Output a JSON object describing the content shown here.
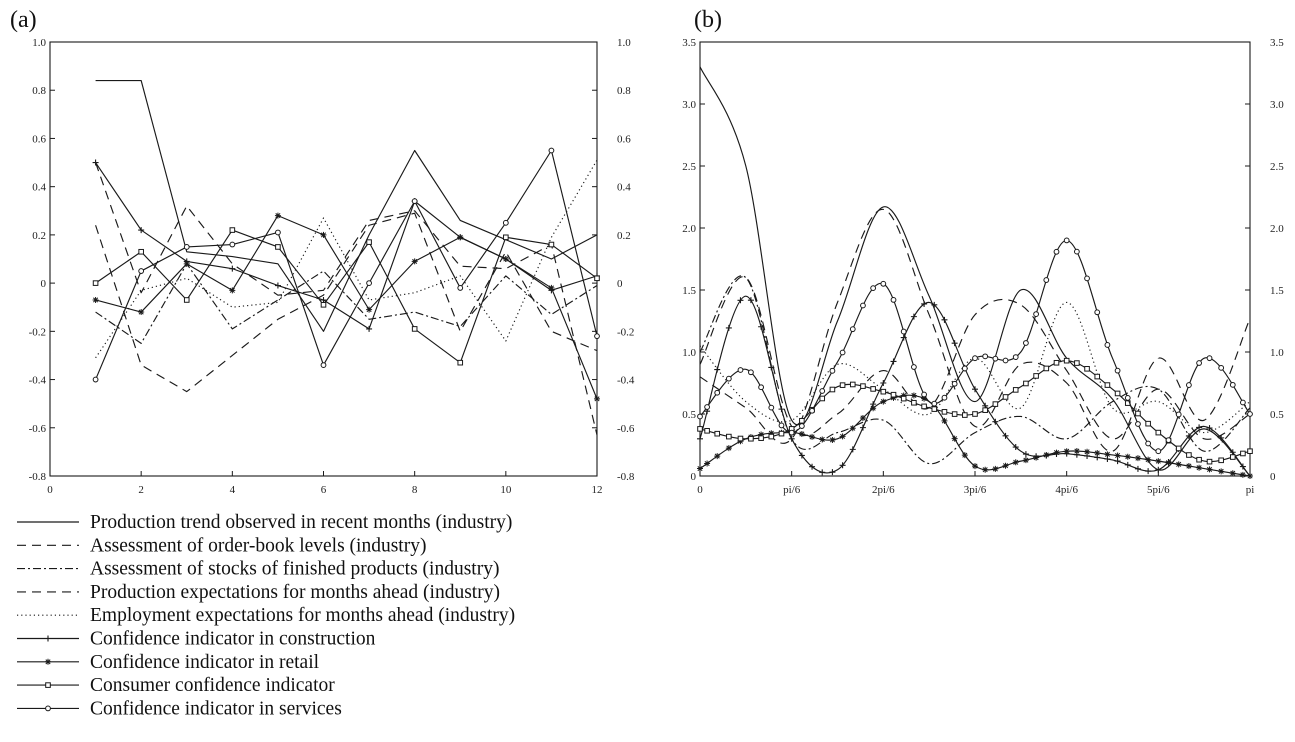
{
  "panel_labels": {
    "a": "(a)",
    "b": "(b)"
  },
  "line_styles": {
    "trend": "solid",
    "order": "long-dash",
    "stocks": "dash-dot",
    "prodexp": "long-dash",
    "employ": "dotted",
    "construction": "solid-plus-marker",
    "retail": "solid-star-marker",
    "consumer": "solid-square-marker",
    "services": "solid-circle-marker"
  },
  "colors": {
    "ink": "#1a1a1a",
    "background": "#ffffff"
  },
  "chart_data": [
    {
      "id": "a",
      "type": "line",
      "x": [
        1,
        2,
        3,
        4,
        5,
        6,
        7,
        8,
        9,
        10,
        11,
        12
      ],
      "xlim": [
        0,
        12
      ],
      "ylim": [
        -0.8,
        1.0
      ],
      "x_ticks": [
        0,
        2,
        4,
        6,
        8,
        10,
        12
      ],
      "x_tick_labels": [
        "0",
        "2",
        "4",
        "6",
        "8",
        "10",
        "12"
      ],
      "y_ticks": [
        -0.8,
        -0.6,
        -0.4,
        -0.2,
        0,
        0.2,
        0.4,
        0.6,
        0.8,
        1.0
      ],
      "y_tick_labels": [
        "-0.8",
        "-0.6",
        "-0.4",
        "-0.2",
        "0",
        "0.2",
        "0.4",
        "0.6",
        "0.8",
        "1.0"
      ],
      "right_axis_labels": true,
      "grid": false,
      "series": [
        {
          "key": "trend",
          "values": [
            0.84,
            0.84,
            0.13,
            0.11,
            0.08,
            -0.2,
            0.2,
            0.55,
            0.26,
            0.18,
            0.1,
            0.2
          ]
        },
        {
          "key": "order",
          "values": [
            0.24,
            -0.34,
            -0.45,
            -0.3,
            -0.15,
            -0.05,
            0.24,
            0.29,
            -0.2,
            0.13,
            -0.2,
            -0.28
          ]
        },
        {
          "key": "stocks",
          "values": [
            -0.12,
            -0.25,
            0.08,
            -0.19,
            -0.07,
            0.05,
            -0.15,
            -0.12,
            -0.18,
            0.03,
            -0.13,
            -0.01
          ]
        },
        {
          "key": "prodexp",
          "values": [
            0.5,
            -0.04,
            0.32,
            0.08,
            -0.05,
            -0.03,
            0.26,
            0.3,
            0.07,
            0.06,
            0.16,
            -0.63
          ]
        },
        {
          "key": "employ",
          "values": [
            -0.31,
            -0.03,
            0.02,
            -0.1,
            -0.08,
            0.27,
            -0.07,
            -0.04,
            0.03,
            -0.24,
            0.19,
            0.51
          ]
        },
        {
          "key": "construction",
          "values": [
            0.5,
            0.22,
            0.09,
            0.06,
            -0.01,
            -0.07,
            -0.19,
            0.34,
            0.19,
            0.1,
            -0.03,
            0.03
          ]
        },
        {
          "key": "retail",
          "values": [
            -0.07,
            -0.12,
            0.08,
            -0.03,
            0.28,
            0.2,
            -0.11,
            0.09,
            0.19,
            0.1,
            -0.02,
            -0.48
          ]
        },
        {
          "key": "consumer",
          "values": [
            0.0,
            0.13,
            -0.07,
            0.22,
            0.15,
            -0.09,
            0.17,
            -0.19,
            -0.33,
            0.19,
            0.16,
            0.02
          ]
        },
        {
          "key": "services",
          "values": [
            -0.4,
            0.05,
            0.15,
            0.16,
            0.21,
            -0.34,
            0.0,
            0.34,
            -0.02,
            0.25,
            0.55,
            -0.22
          ]
        }
      ]
    },
    {
      "id": "b",
      "type": "line",
      "x": [
        0,
        0.0833,
        0.1667,
        0.25,
        0.3333,
        0.4167,
        0.5,
        0.5833,
        0.6667,
        0.75,
        0.8333,
        0.9167,
        1.0
      ],
      "x_unit": "fraction of pi",
      "xlim": [
        0,
        1
      ],
      "ylim": [
        0,
        3.5
      ],
      "x_ticks": [
        0,
        0.16667,
        0.33333,
        0.5,
        0.66667,
        0.83333,
        1.0
      ],
      "x_tick_labels": [
        "0",
        "pi/6",
        "2pi/6",
        "3pi/6",
        "4pi/6",
        "5pi/6",
        "pi"
      ],
      "y_ticks": [
        0,
        0.5,
        1.0,
        1.5,
        2.0,
        2.5,
        3.0,
        3.5
      ],
      "y_tick_labels": [
        "0",
        "0.5",
        "1.0",
        "1.5",
        "2.0",
        "2.5",
        "3.0",
        "3.5"
      ],
      "right_axis_labels": true,
      "grid": false,
      "series": [
        {
          "key": "trend",
          "values": [
            3.3,
            2.5,
            0.45,
            1.25,
            2.17,
            1.45,
            0.6,
            1.5,
            0.95,
            0.62,
            0.05,
            0.38,
            0.0
          ]
        },
        {
          "key": "order",
          "values": [
            0.8,
            0.55,
            0.3,
            1.4,
            2.15,
            1.3,
            0.4,
            0.9,
            0.75,
            0.2,
            0.95,
            0.45,
            1.27
          ]
        },
        {
          "key": "stocks",
          "values": [
            1.0,
            1.6,
            0.3,
            0.35,
            0.45,
            0.1,
            0.35,
            0.48,
            0.3,
            0.6,
            0.7,
            0.2,
            0.55
          ]
        },
        {
          "key": "prodexp",
          "values": [
            0.9,
            1.6,
            0.4,
            0.5,
            0.85,
            0.55,
            1.3,
            1.38,
            0.85,
            0.3,
            0.7,
            0.3,
            0.5
          ]
        },
        {
          "key": "employ",
          "values": [
            1.05,
            0.6,
            0.45,
            0.9,
            0.7,
            0.5,
            0.95,
            0.55,
            1.4,
            0.55,
            0.6,
            0.35,
            0.6
          ]
        },
        {
          "key": "construction",
          "values": [
            0.3,
            1.45,
            0.3,
            0.05,
            0.75,
            1.4,
            0.7,
            0.2,
            0.18,
            0.13,
            0.05,
            0.4,
            0.0
          ]
        },
        {
          "key": "retail",
          "values": [
            0.06,
            0.3,
            0.35,
            0.3,
            0.6,
            0.6,
            0.08,
            0.12,
            0.2,
            0.17,
            0.12,
            0.06,
            0.0
          ]
        },
        {
          "key": "consumer",
          "values": [
            0.38,
            0.3,
            0.38,
            0.72,
            0.68,
            0.55,
            0.5,
            0.72,
            0.93,
            0.7,
            0.35,
            0.12,
            0.2
          ]
        },
        {
          "key": "services",
          "values": [
            0.48,
            0.86,
            0.35,
            0.92,
            1.55,
            0.6,
            0.95,
            1.0,
            1.9,
            0.95,
            0.2,
            0.95,
            0.5
          ]
        }
      ]
    }
  ],
  "legend": {
    "entries": [
      {
        "key": "trend",
        "label": "Production trend observed in recent months (industry)"
      },
      {
        "key": "order",
        "label": "Assessment of order-book levels (industry)"
      },
      {
        "key": "stocks",
        "label": "Assessment of stocks of finished products (industry)"
      },
      {
        "key": "prodexp",
        "label": "Production expectations for months ahead (industry)"
      },
      {
        "key": "employ",
        "label": "Employment expectations for months ahead (industry)"
      },
      {
        "key": "construction",
        "label": "Confidence indicator in construction"
      },
      {
        "key": "retail",
        "label": "Confidence indicator in retail"
      },
      {
        "key": "consumer",
        "label": "Consumer confidence indicator"
      },
      {
        "key": "services",
        "label": "Confidence indicator in services"
      }
    ]
  }
}
